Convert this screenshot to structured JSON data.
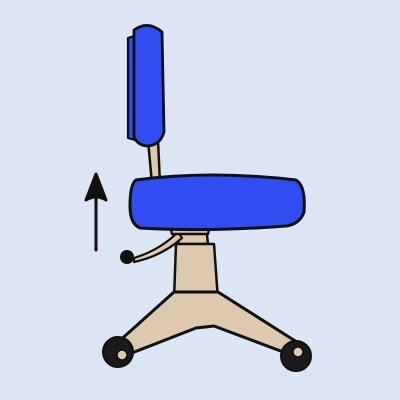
{
  "scene": {
    "subject": "office-chair",
    "arrow_direction": "up"
  },
  "colors": {
    "background": "#dce5f3",
    "upholstery": "#2f4df0",
    "frame": "#ddc9ad",
    "outline": "#111111",
    "wheel": "#1a1a1a",
    "lever_knob": "#111111"
  }
}
